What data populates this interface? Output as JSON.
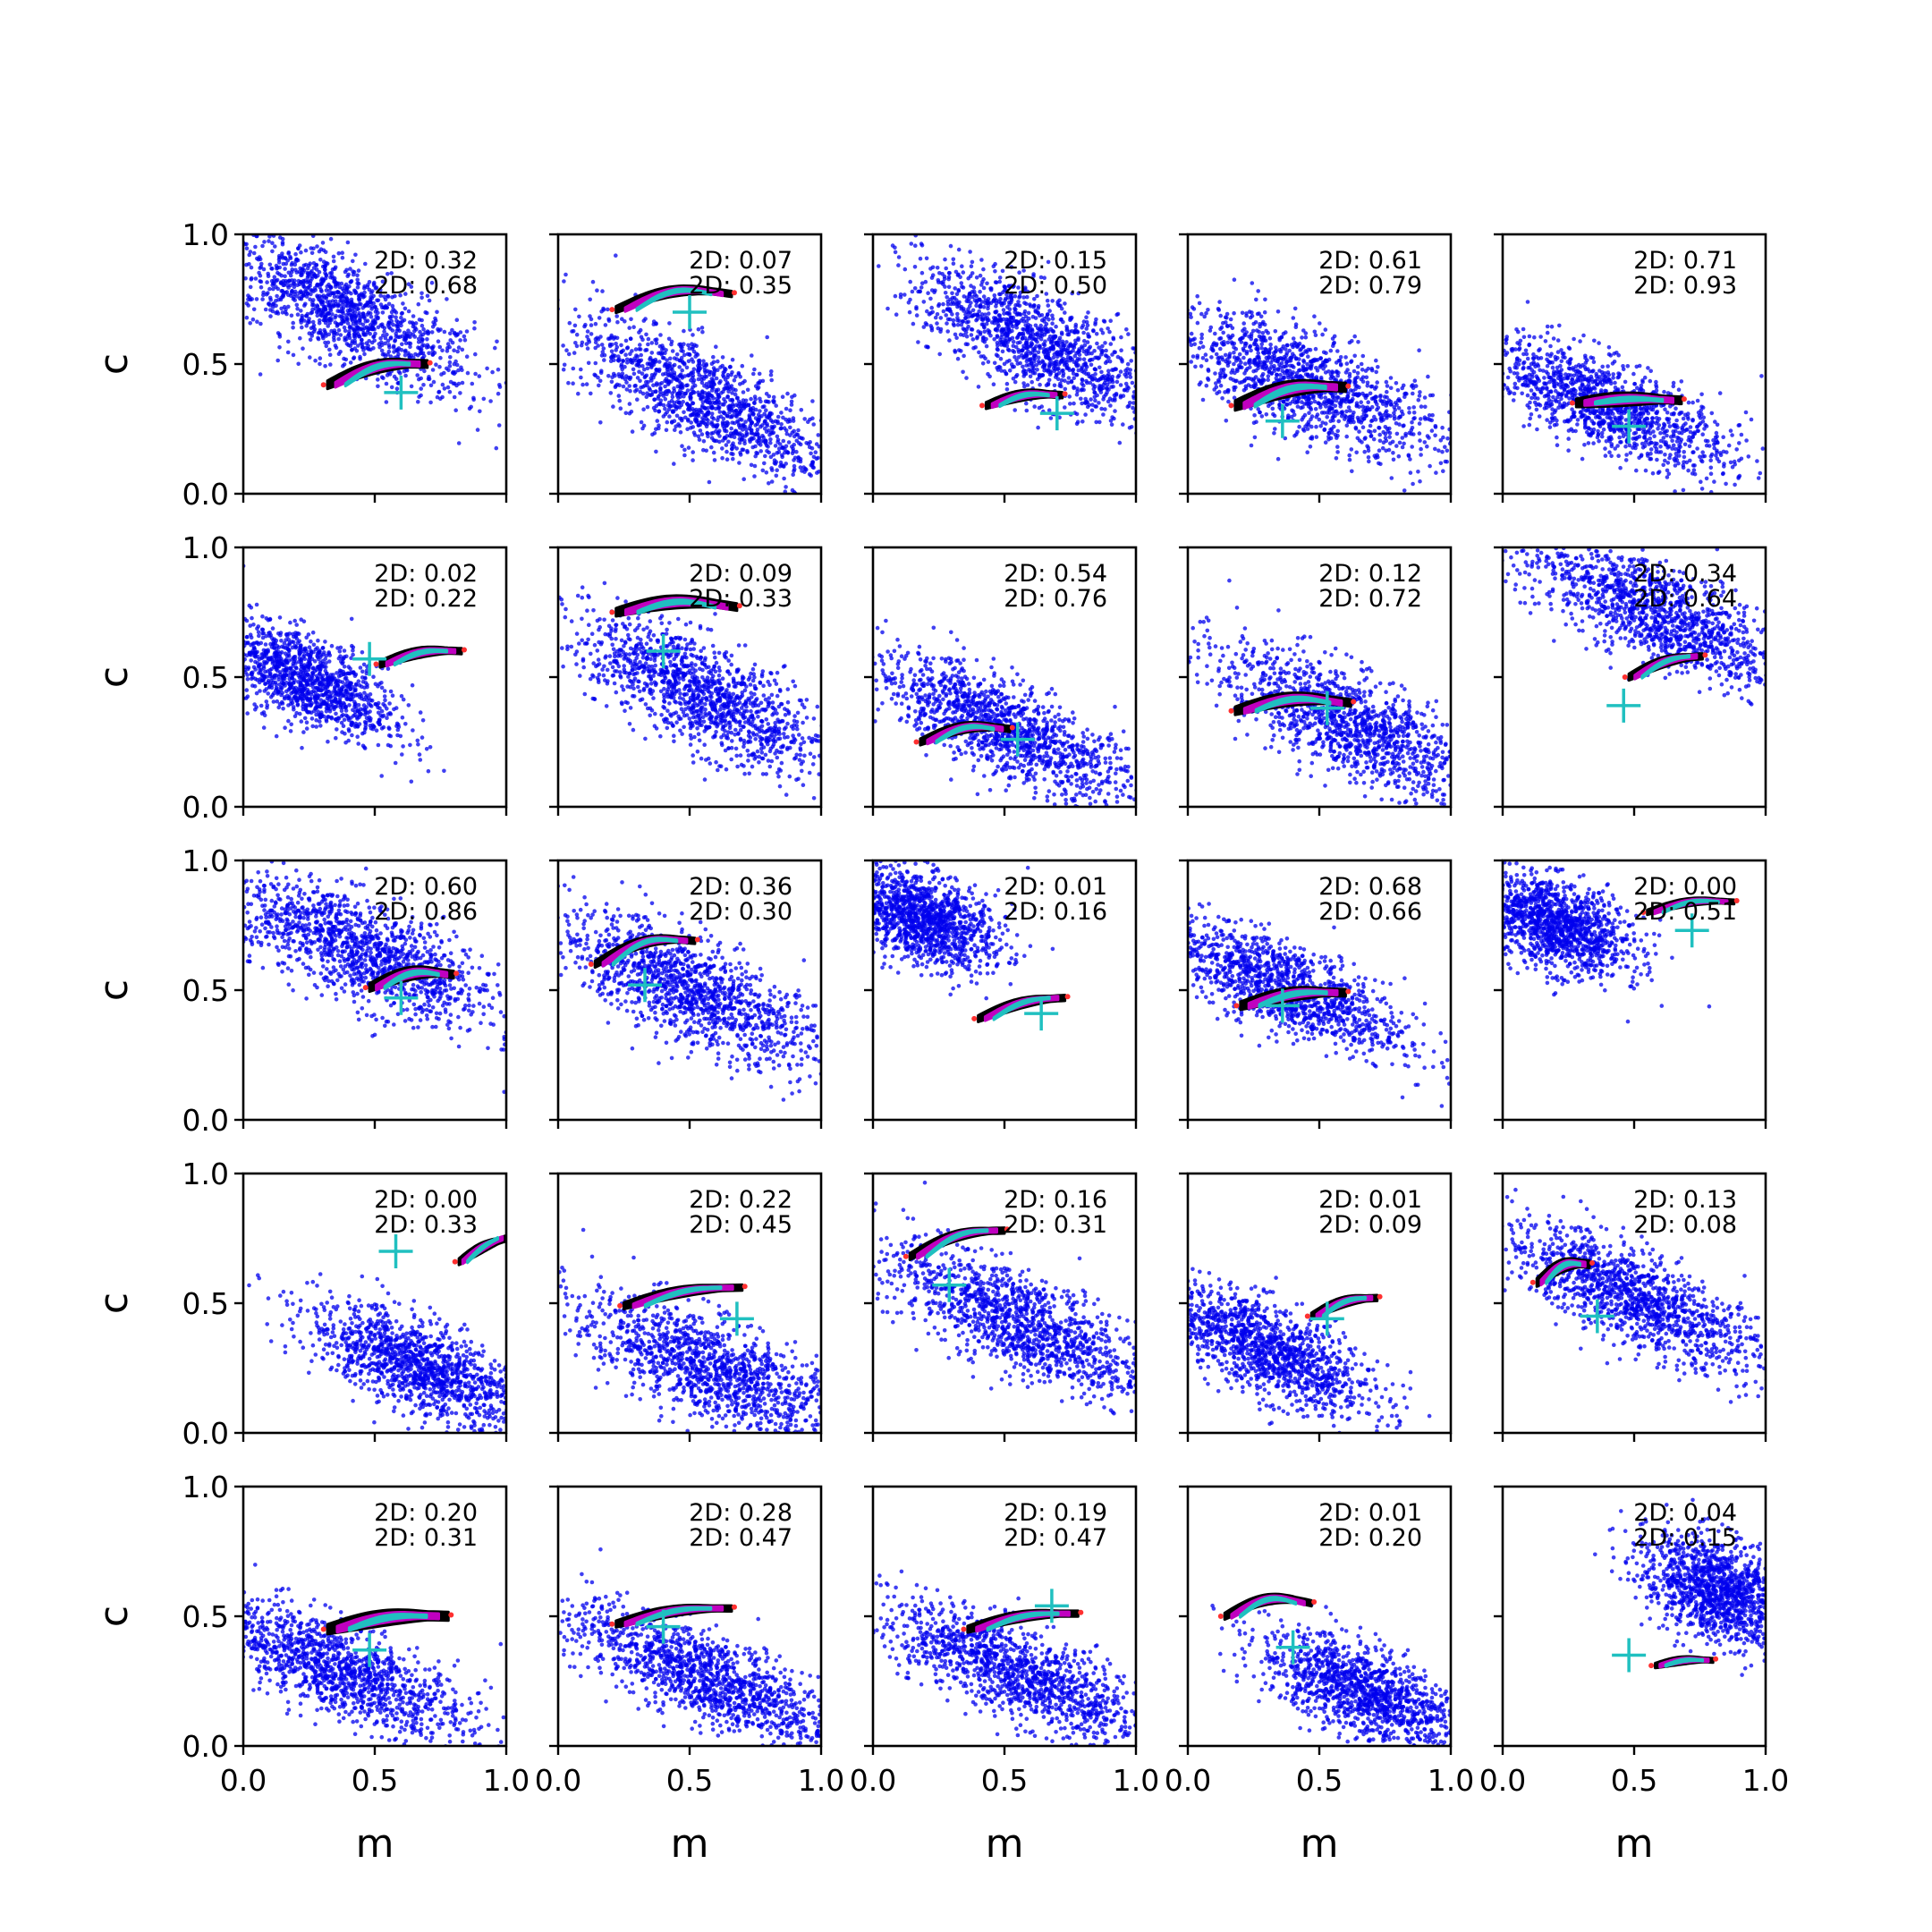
{
  "figure": {
    "rows": 5,
    "cols": 5,
    "xlabel": "m",
    "ylabel": "c"
  },
  "colors": {
    "prior": "#0000ee",
    "outer_contour": "#000000",
    "middle_contour": "#c000c0",
    "inner_contour": "#20c0c0",
    "outlier_points": "#ff3030",
    "truth_marker": "#20c0c0",
    "frame": "#000000",
    "background": "#ffffff"
  },
  "chart_data": {
    "type": "scatter",
    "xlim": [
      0.0,
      1.0
    ],
    "ylim": [
      0.0,
      1.0
    ],
    "xticks": [
      "0.0",
      "0.5",
      "1.0"
    ],
    "yticks": [
      "0.0",
      "0.5",
      "1.0"
    ],
    "grid": false,
    "panels": [
      {
        "row": 0,
        "col": 0,
        "ann": [
          "2D: 0.32",
          "2D: 0.68"
        ],
        "prior": {
          "center": [
            0.38,
            0.7
          ],
          "slope": -0.55,
          "length": 1.0,
          "width": 0.09
        },
        "posterior": {
          "x0": 0.32,
          "x1": 0.7,
          "y0": 0.42,
          "y1": 0.5,
          "bend": 0.03,
          "thick": 0.05
        },
        "truth": [
          0.6,
          0.39
        ]
      },
      {
        "row": 0,
        "col": 1,
        "ann": [
          "2D: 0.07",
          "2D: 0.35"
        ],
        "prior": {
          "center": [
            0.55,
            0.37
          ],
          "slope": -0.55,
          "length": 1.0,
          "width": 0.09
        },
        "posterior": {
          "x0": 0.22,
          "x1": 0.66,
          "y0": 0.71,
          "y1": 0.77,
          "bend": 0.04,
          "thick": 0.04
        },
        "truth": [
          0.5,
          0.7
        ]
      },
      {
        "row": 0,
        "col": 2,
        "ann": [
          "2D: 0.15",
          "2D: 0.50"
        ],
        "prior": {
          "center": [
            0.62,
            0.58
          ],
          "slope": -0.55,
          "length": 0.95,
          "width": 0.09
        },
        "posterior": {
          "x0": 0.43,
          "x1": 0.72,
          "y0": 0.34,
          "y1": 0.38,
          "bend": 0.02,
          "thick": 0.04
        },
        "truth": [
          0.7,
          0.31
        ]
      },
      {
        "row": 0,
        "col": 3,
        "ann": [
          "2D: 0.61",
          "2D: 0.79"
        ],
        "prior": {
          "center": [
            0.45,
            0.42
          ],
          "slope": -0.45,
          "length": 1.0,
          "width": 0.09
        },
        "posterior": {
          "x0": 0.18,
          "x1": 0.6,
          "y0": 0.34,
          "y1": 0.41,
          "bend": 0.03,
          "thick": 0.06
        },
        "truth": [
          0.36,
          0.28
        ]
      },
      {
        "row": 0,
        "col": 4,
        "ann": [
          "2D: 0.71",
          "2D: 0.93"
        ],
        "prior": {
          "center": [
            0.38,
            0.35
          ],
          "slope": -0.45,
          "length": 0.95,
          "width": 0.08
        },
        "posterior": {
          "x0": 0.28,
          "x1": 0.68,
          "y0": 0.35,
          "y1": 0.36,
          "bend": 0.01,
          "thick": 0.05
        },
        "truth": [
          0.48,
          0.26
        ]
      },
      {
        "row": 1,
        "col": 0,
        "ann": [
          "2D: 0.02",
          "2D: 0.22"
        ],
        "prior": {
          "center": [
            0.22,
            0.5
          ],
          "slope": -0.5,
          "length": 0.7,
          "width": 0.08
        },
        "posterior": {
          "x0": 0.52,
          "x1": 0.83,
          "y0": 0.55,
          "y1": 0.6,
          "bend": 0.02,
          "thick": 0.04
        },
        "truth": [
          0.48,
          0.57
        ]
      },
      {
        "row": 1,
        "col": 1,
        "ann": [
          "2D: 0.09",
          "2D: 0.33"
        ],
        "prior": {
          "center": [
            0.55,
            0.43
          ],
          "slope": -0.55,
          "length": 0.95,
          "width": 0.09
        },
        "posterior": {
          "x0": 0.22,
          "x1": 0.68,
          "y0": 0.75,
          "y1": 0.77,
          "bend": 0.03,
          "thick": 0.05
        },
        "truth": [
          0.4,
          0.6
        ]
      },
      {
        "row": 1,
        "col": 2,
        "ann": [
          "2D: 0.54",
          "2D: 0.76"
        ],
        "prior": {
          "center": [
            0.5,
            0.3
          ],
          "slope": -0.5,
          "length": 1.0,
          "width": 0.08
        },
        "posterior": {
          "x0": 0.18,
          "x1": 0.52,
          "y0": 0.25,
          "y1": 0.3,
          "bend": 0.03,
          "thick": 0.04
        },
        "truth": [
          0.55,
          0.26
        ]
      },
      {
        "row": 1,
        "col": 3,
        "ann": [
          "2D: 0.12",
          "2D: 0.72"
        ],
        "prior": {
          "center": [
            0.62,
            0.32
          ],
          "slope": -0.5,
          "length": 1.0,
          "width": 0.09
        },
        "posterior": {
          "x0": 0.18,
          "x1": 0.62,
          "y0": 0.37,
          "y1": 0.4,
          "bend": 0.03,
          "thick": 0.05
        },
        "truth": [
          0.53,
          0.38
        ]
      },
      {
        "row": 1,
        "col": 4,
        "ann": [
          "2D: 0.34",
          "2D: 0.64"
        ],
        "prior": {
          "center": [
            0.58,
            0.75
          ],
          "slope": -0.5,
          "length": 1.0,
          "width": 0.09
        },
        "posterior": {
          "x0": 0.48,
          "x1": 0.76,
          "y0": 0.5,
          "y1": 0.58,
          "bend": 0.02,
          "thick": 0.04
        },
        "truth": [
          0.46,
          0.39
        ]
      },
      {
        "row": 2,
        "col": 0,
        "ann": [
          "2D: 0.60",
          "2D: 0.86"
        ],
        "prior": {
          "center": [
            0.45,
            0.65
          ],
          "slope": -0.45,
          "length": 1.0,
          "width": 0.09
        },
        "posterior": {
          "x0": 0.48,
          "x1": 0.8,
          "y0": 0.51,
          "y1": 0.56,
          "bend": 0.03,
          "thick": 0.05
        },
        "truth": [
          0.6,
          0.47
        ]
      },
      {
        "row": 2,
        "col": 1,
        "ann": [
          "2D: 0.36",
          "2D: 0.30"
        ],
        "prior": {
          "center": [
            0.5,
            0.5
          ],
          "slope": -0.5,
          "length": 1.0,
          "width": 0.09
        },
        "posterior": {
          "x0": 0.14,
          "x1": 0.52,
          "y0": 0.6,
          "y1": 0.69,
          "bend": 0.04,
          "thick": 0.04
        },
        "truth": [
          0.33,
          0.52
        ]
      },
      {
        "row": 2,
        "col": 2,
        "ann": [
          "2D: 0.01",
          "2D: 0.16"
        ],
        "prior": {
          "center": [
            0.18,
            0.78
          ],
          "slope": -0.45,
          "length": 0.55,
          "width": 0.08
        },
        "posterior": {
          "x0": 0.4,
          "x1": 0.73,
          "y0": 0.39,
          "y1": 0.47,
          "bend": 0.02,
          "thick": 0.04
        },
        "truth": [
          0.64,
          0.41
        ]
      },
      {
        "row": 2,
        "col": 3,
        "ann": [
          "2D: 0.68",
          "2D: 0.66"
        ],
        "prior": {
          "center": [
            0.35,
            0.52
          ],
          "slope": -0.45,
          "length": 0.95,
          "width": 0.08
        },
        "posterior": {
          "x0": 0.2,
          "x1": 0.6,
          "y0": 0.44,
          "y1": 0.49,
          "bend": 0.02,
          "thick": 0.05
        },
        "truth": [
          0.36,
          0.44
        ]
      },
      {
        "row": 2,
        "col": 4,
        "ann": [
          "2D: 0.00",
          "2D: 0.51"
        ],
        "prior": {
          "center": [
            0.2,
            0.75
          ],
          "slope": -0.4,
          "length": 0.55,
          "width": 0.08
        },
        "posterior": {
          "x0": 0.55,
          "x1": 0.88,
          "y0": 0.8,
          "y1": 0.84,
          "bend": 0.02,
          "thick": 0.03
        },
        "truth": [
          0.72,
          0.73
        ]
      },
      {
        "row": 3,
        "col": 0,
        "ann": [
          "2D: 0.00",
          "2D: 0.33"
        ],
        "prior": {
          "center": [
            0.68,
            0.25
          ],
          "slope": -0.45,
          "length": 0.85,
          "width": 0.08
        },
        "posterior": {
          "x0": 0.82,
          "x1": 1.0,
          "y0": 0.66,
          "y1": 0.75,
          "bend": 0.01,
          "thick": 0.04
        },
        "truth": [
          0.58,
          0.7
        ]
      },
      {
        "row": 3,
        "col": 1,
        "ann": [
          "2D: 0.22",
          "2D: 0.45"
        ],
        "prior": {
          "center": [
            0.58,
            0.25
          ],
          "slope": -0.45,
          "length": 1.0,
          "width": 0.09
        },
        "posterior": {
          "x0": 0.25,
          "x1": 0.7,
          "y0": 0.49,
          "y1": 0.56,
          "bend": 0.02,
          "thick": 0.04
        },
        "truth": [
          0.68,
          0.44
        ]
      },
      {
        "row": 3,
        "col": 2,
        "ann": [
          "2D: 0.16",
          "2D: 0.31"
        ],
        "prior": {
          "center": [
            0.55,
            0.43
          ],
          "slope": -0.5,
          "length": 1.0,
          "width": 0.09
        },
        "posterior": {
          "x0": 0.14,
          "x1": 0.5,
          "y0": 0.68,
          "y1": 0.78,
          "bend": 0.03,
          "thick": 0.04
        },
        "truth": [
          0.29,
          0.57
        ]
      },
      {
        "row": 3,
        "col": 3,
        "ann": [
          "2D: 0.01",
          "2D: 0.09"
        ],
        "prior": {
          "center": [
            0.3,
            0.32
          ],
          "slope": -0.5,
          "length": 0.8,
          "width": 0.08
        },
        "posterior": {
          "x0": 0.47,
          "x1": 0.72,
          "y0": 0.45,
          "y1": 0.52,
          "bend": 0.02,
          "thick": 0.04
        },
        "truth": [
          0.53,
          0.44
        ]
      },
      {
        "row": 3,
        "col": 4,
        "ann": [
          "2D: 0.13",
          "2D: 0.08"
        ],
        "prior": {
          "center": [
            0.5,
            0.52
          ],
          "slope": -0.5,
          "length": 1.0,
          "width": 0.08
        },
        "posterior": {
          "x0": 0.13,
          "x1": 0.33,
          "y0": 0.58,
          "y1": 0.65,
          "bend": 0.03,
          "thick": 0.05
        },
        "truth": [
          0.36,
          0.45
        ]
      },
      {
        "row": 4,
        "col": 0,
        "ann": [
          "2D: 0.20",
          "2D: 0.31"
        ],
        "prior": {
          "center": [
            0.35,
            0.3
          ],
          "slope": -0.45,
          "length": 1.0,
          "width": 0.08
        },
        "posterior": {
          "x0": 0.32,
          "x1": 0.78,
          "y0": 0.45,
          "y1": 0.5,
          "bend": 0.02,
          "thick": 0.06
        },
        "truth": [
          0.48,
          0.37
        ]
      },
      {
        "row": 4,
        "col": 1,
        "ann": [
          "2D: 0.28",
          "2D: 0.47"
        ],
        "prior": {
          "center": [
            0.55,
            0.27
          ],
          "slope": -0.45,
          "length": 1.0,
          "width": 0.08
        },
        "posterior": {
          "x0": 0.22,
          "x1": 0.66,
          "y0": 0.47,
          "y1": 0.53,
          "bend": 0.02,
          "thick": 0.04
        },
        "truth": [
          0.4,
          0.46
        ]
      },
      {
        "row": 4,
        "col": 2,
        "ann": [
          "2D: 0.19",
          "2D: 0.47"
        ],
        "prior": {
          "center": [
            0.55,
            0.28
          ],
          "slope": -0.45,
          "length": 1.0,
          "width": 0.08
        },
        "posterior": {
          "x0": 0.36,
          "x1": 0.78,
          "y0": 0.45,
          "y1": 0.51,
          "bend": 0.02,
          "thick": 0.04
        },
        "truth": [
          0.68,
          0.54
        ]
      },
      {
        "row": 4,
        "col": 3,
        "ann": [
          "2D: 0.01",
          "2D: 0.20"
        ],
        "prior": {
          "center": [
            0.68,
            0.2
          ],
          "slope": -0.45,
          "length": 0.8,
          "width": 0.08
        },
        "posterior": {
          "x0": 0.14,
          "x1": 0.47,
          "y0": 0.5,
          "y1": 0.55,
          "bend": 0.04,
          "thick": 0.04
        },
        "truth": [
          0.4,
          0.38
        ]
      },
      {
        "row": 4,
        "col": 4,
        "ann": [
          "2D: 0.04",
          "2D: 0.15"
        ],
        "prior": {
          "center": [
            0.82,
            0.6
          ],
          "slope": -0.5,
          "length": 0.55,
          "width": 0.09
        },
        "posterior": {
          "x0": 0.58,
          "x1": 0.8,
          "y0": 0.31,
          "y1": 0.33,
          "bend": 0.01,
          "thick": 0.03
        },
        "truth": [
          0.48,
          0.35
        ]
      }
    ]
  }
}
